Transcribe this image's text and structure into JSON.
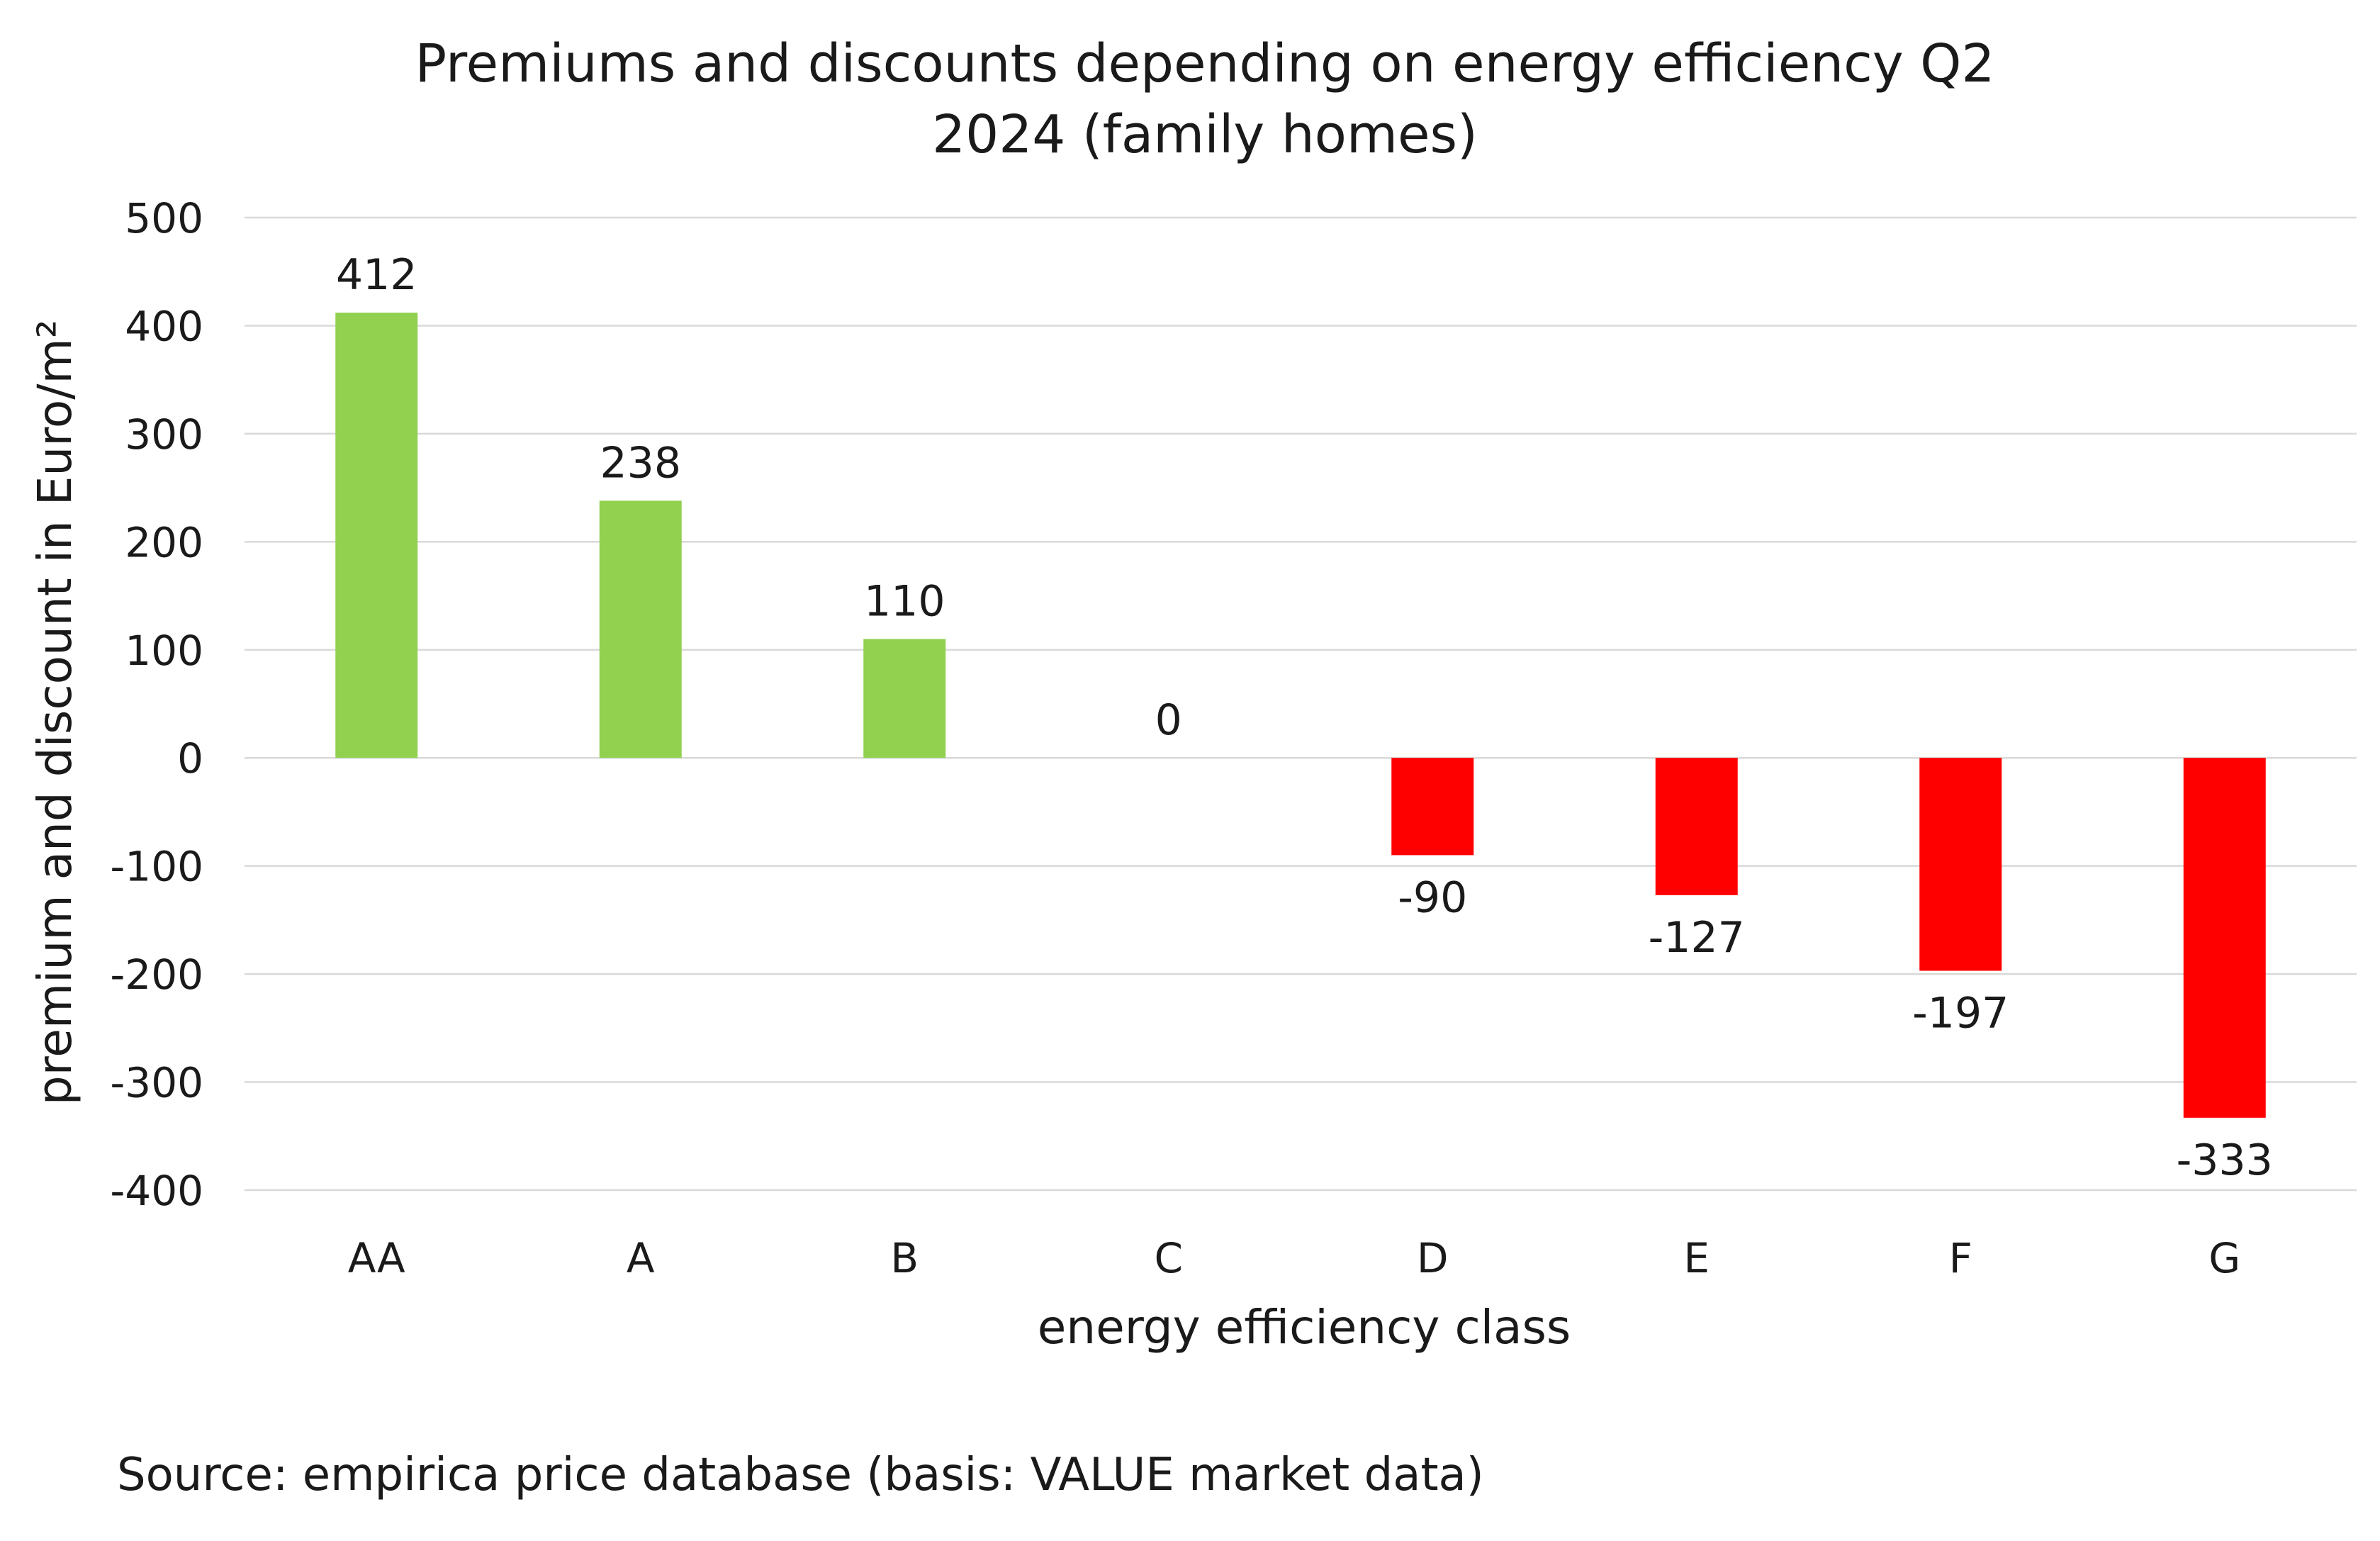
{
  "chart_data": {
    "type": "bar",
    "title_lines": [
      "Premiums and discounts depending on energy efficiency Q2",
      "2024 (family homes)"
    ],
    "xlabel": "energy efficiency class",
    "ylabel": "premium and discount in Euro/m²",
    "categories": [
      "AA",
      "A",
      "B",
      "C",
      "D",
      "E",
      "F",
      "G"
    ],
    "values": [
      412,
      238,
      110,
      0,
      -90,
      -127,
      -197,
      -333
    ],
    "data_labels": [
      "412",
      "238",
      "110",
      "0",
      "-90",
      "-127",
      "-197",
      "-333"
    ],
    "ylim": [
      -400,
      500
    ],
    "yticks": [
      500,
      400,
      300,
      200,
      100,
      0,
      -100,
      -200,
      -300,
      -400
    ],
    "ytick_labels": [
      "500",
      "400",
      "300",
      "200",
      "100",
      "0",
      "-100",
      "-200",
      "-300",
      "-400"
    ],
    "grid": "horizontal",
    "legend": "none",
    "colors": {
      "positive": "#92d050",
      "negative": "#ff0000",
      "grid": "#d9d9d9",
      "text": "#1a1a1a"
    }
  },
  "source_note": "Source: empirica price database (basis: VALUE market data)"
}
